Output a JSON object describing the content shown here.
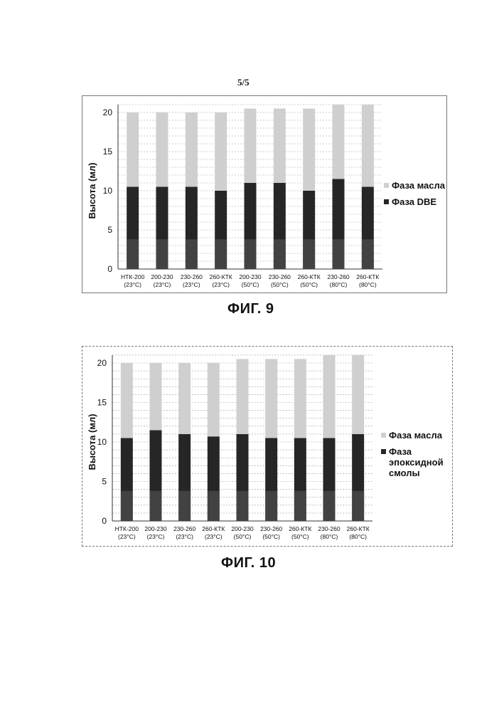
{
  "page_number": "5/5",
  "figures": [
    {
      "caption": "ФИГ. 9"
    },
    {
      "caption": "ФИГ. 10"
    }
  ],
  "chart_data": [
    {
      "type": "bar",
      "stacked": true,
      "title": "",
      "ylabel": "Высота (мл)",
      "xlabel": "",
      "ylim": [
        0,
        20
      ],
      "yticks": [
        0,
        5,
        10,
        15,
        20
      ],
      "grid": true,
      "legend_position": "right",
      "categories": [
        [
          "НТК-200",
          "(23°C)"
        ],
        [
          "200-230",
          "(23°C)"
        ],
        [
          "230-260",
          "(23°C)"
        ],
        [
          "260-КТК",
          "(23°C)"
        ],
        [
          "200-230",
          "(50°C)"
        ],
        [
          "230-260",
          "(50°C)"
        ],
        [
          "260-КТК",
          "(50°C)"
        ],
        [
          "230-260",
          "(80°C)"
        ],
        [
          "260-КТК",
          "(80°C)"
        ]
      ],
      "series": [
        {
          "name": "Фаза DBE",
          "color": "#262626",
          "values": [
            10.5,
            10.5,
            10.5,
            10.0,
            11.0,
            11.0,
            10.0,
            11.5,
            10.5
          ]
        },
        {
          "name": "Фаза масла",
          "color": "#cfcfcf",
          "values": [
            9.5,
            9.5,
            9.5,
            10.0,
            9.5,
            9.5,
            10.5,
            9.5,
            10.5
          ]
        }
      ]
    },
    {
      "type": "bar",
      "stacked": true,
      "title": "",
      "ylabel": "Высота (мл)",
      "xlabel": "",
      "ylim": [
        0,
        20
      ],
      "yticks": [
        0,
        5,
        10,
        15,
        20
      ],
      "grid": true,
      "legend_position": "right",
      "categories": [
        [
          "НТК-200",
          "(23°C)"
        ],
        [
          "200-230",
          "(23°C)"
        ],
        [
          "230-260",
          "(23°C)"
        ],
        [
          "260-КТК",
          "(23°C)"
        ],
        [
          "200-230",
          "(50°C)"
        ],
        [
          "230-260",
          "(50°C)"
        ],
        [
          "260-КТК",
          "(50°C)"
        ],
        [
          "230-260",
          "(80°C)"
        ],
        [
          "260-КТК",
          "(80°C)"
        ]
      ],
      "series": [
        {
          "name": "Фаза эпоксидной смолы",
          "color": "#262626",
          "values": [
            10.5,
            11.5,
            11.0,
            10.7,
            11.0,
            10.5,
            10.5,
            10.5,
            11.0
          ]
        },
        {
          "name": "Фаза масла",
          "color": "#cfcfcf",
          "values": [
            9.5,
            8.5,
            9.0,
            9.3,
            9.5,
            10.0,
            10.0,
            10.5,
            10.0
          ]
        }
      ]
    }
  ]
}
